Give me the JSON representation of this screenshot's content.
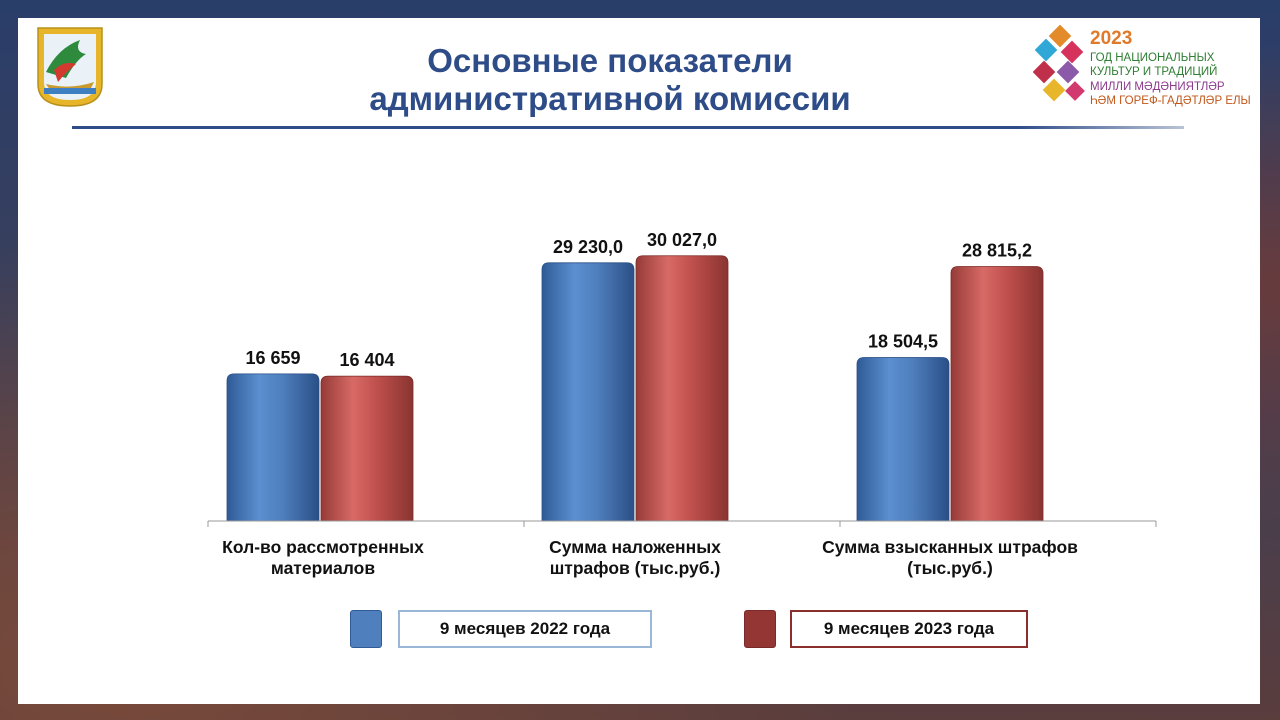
{
  "title_line1": "Основные показатели",
  "title_line2": "административной комиссии",
  "logo_right": {
    "year": "2023",
    "line1": "ГОД НАЦИОНАЛЬНЫХ",
    "line2": "КУЛЬТУР И ТРАДИЦИЙ",
    "line3": "МИЛЛИ МӘДӘНИЯТЛӘР",
    "line4": "ҺӘМ ГОРЕФ-ГАДӘТЛӘР ЕЛЫ"
  },
  "colors": {
    "blue": "#4f7fbd",
    "red": "#c0504d",
    "title": "#2e4c88"
  },
  "chart_data": {
    "type": "bar",
    "categories": [
      [
        "Кол-во рассмотренных",
        "материалов"
      ],
      [
        "Сумма наложенных",
        "штрафов (тыс.руб.)"
      ],
      [
        "Сумма взысканных штрафов",
        "(тыс.руб.)"
      ]
    ],
    "series": [
      {
        "name": "9 месяцев 2022 года",
        "values": [
          16659,
          29230.0,
          18504.5
        ],
        "labels": [
          "16 659",
          "29 230,0",
          "18 504,5"
        ]
      },
      {
        "name": "9 месяцев 2023 года",
        "values": [
          16404,
          30027.0,
          28815.2
        ],
        "labels": [
          "16 404",
          "30 027,0",
          "28 815,2"
        ]
      }
    ],
    "ylim": [
      0,
      42000
    ],
    "grid": false,
    "legend": "bottom"
  }
}
